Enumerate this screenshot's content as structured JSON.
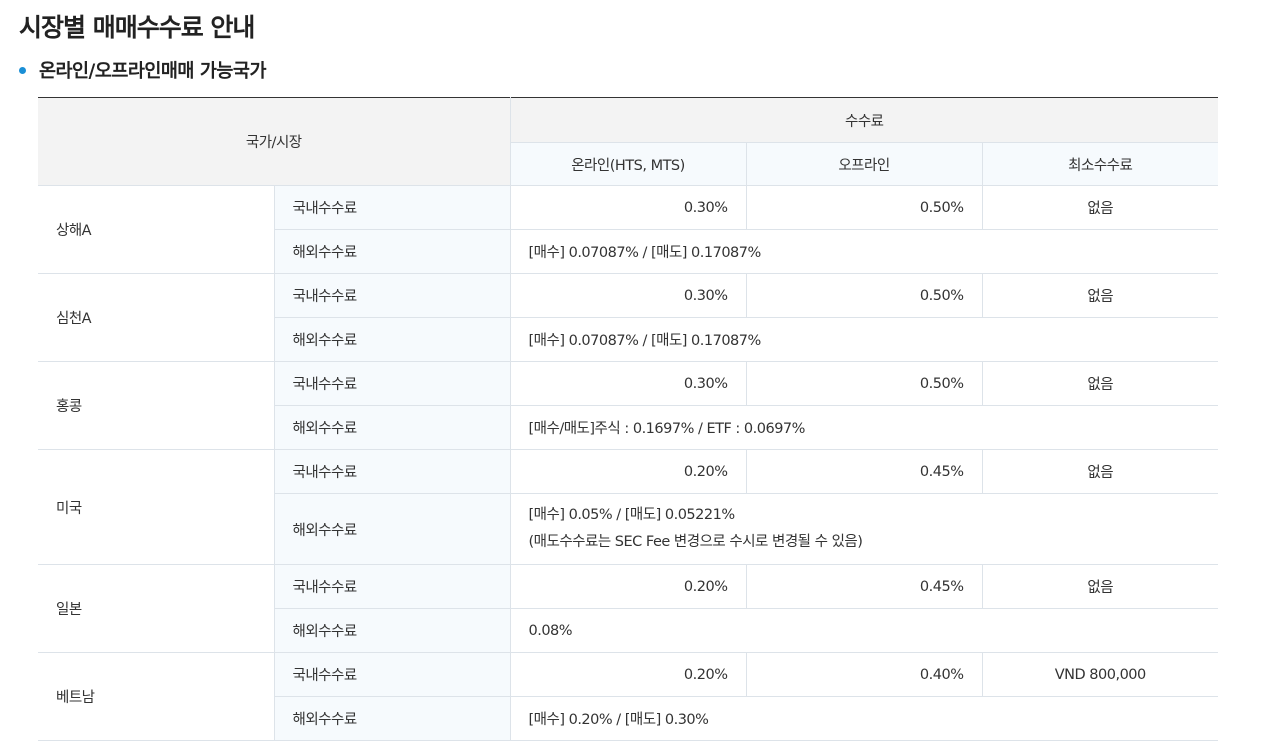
{
  "page": {
    "title": "시장별 매매수수료 안내",
    "section_heading": "온라인/오프라인매매 가능국가"
  },
  "table": {
    "header": {
      "country_market": "국가/시장",
      "fee": "수수료",
      "online": "온라인(HTS, MTS)",
      "offline": "오프라인",
      "minimum": "최소수수료"
    },
    "rows": [
      {
        "market": "상해A",
        "domestic_label": "국내수수료",
        "online": "0.30%",
        "offline": "0.50%",
        "minimum": "없음",
        "overseas_label": "해외수수료",
        "overseas_line1": "[매수] 0.07087% / [매도] 0.17087%"
      },
      {
        "market": "심천A",
        "domestic_label": "국내수수료",
        "online": "0.30%",
        "offline": "0.50%",
        "minimum": "없음",
        "overseas_label": "해외수수료",
        "overseas_line1": "[매수] 0.07087% / [매도] 0.17087%"
      },
      {
        "market": "홍콩",
        "domestic_label": "국내수수료",
        "online": "0.30%",
        "offline": "0.50%",
        "minimum": "없음",
        "overseas_label": "해외수수료",
        "overseas_line1": "[매수/매도]주식 : 0.1697% / ETF : 0.0697%"
      },
      {
        "market": "미국",
        "domestic_label": "국내수수료",
        "online": "0.20%",
        "offline": "0.45%",
        "minimum": "없음",
        "overseas_label": "해외수수료",
        "overseas_line1": "[매수] 0.05% / [매도] 0.05221%",
        "overseas_line2": "(매도수수료는 SEC Fee 변경으로 수시로 변경될 수 있음)"
      },
      {
        "market": "일본",
        "domestic_label": "국내수수료",
        "online": "0.20%",
        "offline": "0.45%",
        "minimum": "없음",
        "overseas_label": "해외수수료",
        "overseas_line1": "0.08%"
      },
      {
        "market": "베트남",
        "domestic_label": "국내수수료",
        "online": "0.20%",
        "offline": "0.40%",
        "minimum": "VND 800,000",
        "overseas_label": "해외수수료",
        "overseas_line1": "[매수] 0.20% / [매도] 0.30%"
      }
    ]
  },
  "colors": {
    "bullet": "#1a8fd6",
    "header_bg": "#f3f3f3",
    "label_bg": "#f6fafd",
    "border": "#dde3e9"
  }
}
